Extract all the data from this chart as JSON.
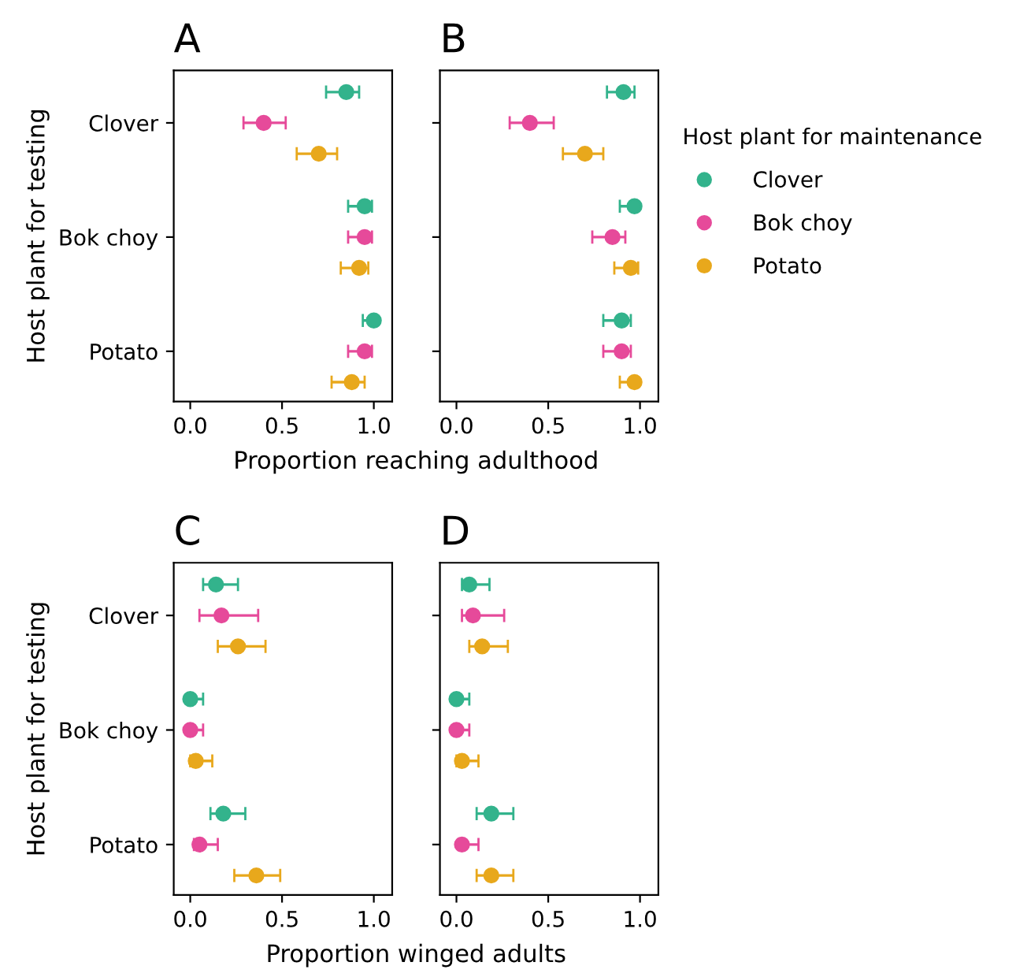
{
  "chart_data": [
    {
      "type": "scatter",
      "title": "A",
      "orientation": "horizontal",
      "xlabel": "Proportion reaching adulthood",
      "ylabel": "Host plant for testing",
      "categories": [
        "Clover",
        "Bok choy",
        "Potato"
      ],
      "xlim": [
        -0.09,
        1.1
      ],
      "xticks": [
        {
          "value": 0,
          "label": "0.0"
        },
        {
          "value": 0.5,
          "label": "0.5"
        },
        {
          "value": 1,
          "label": "1.0"
        }
      ],
      "marker": "circle",
      "grid": false,
      "series": [
        {
          "color": "#33b38c",
          "values": [
            0.85,
            0.95,
            1.0
          ],
          "errors": [
            [
              0.74,
              0.92
            ],
            [
              0.86,
              0.99
            ],
            [
              0.94,
              1.0
            ]
          ]
        },
        {
          "color": "#e64a9a",
          "values": [
            0.4,
            0.95,
            0.95
          ],
          "errors": [
            [
              0.29,
              0.52
            ],
            [
              0.86,
              0.99
            ],
            [
              0.86,
              0.99
            ]
          ]
        },
        {
          "color": "#e8a81c",
          "values": [
            0.7,
            0.92,
            0.88
          ],
          "errors": [
            [
              0.58,
              0.8
            ],
            [
              0.82,
              0.97
            ],
            [
              0.77,
              0.95
            ]
          ]
        }
      ]
    },
    {
      "type": "scatter",
      "title": "B",
      "orientation": "horizontal",
      "xlim": [
        -0.09,
        1.1
      ],
      "xticks": [
        {
          "value": 0,
          "label": "0.0"
        },
        {
          "value": 0.5,
          "label": "0.5"
        },
        {
          "value": 1,
          "label": "1.0"
        }
      ],
      "tick_labels": "x",
      "marker": "circle",
      "grid": false,
      "legend": "right",
      "legend_title": "Host plant for maintenance",
      "series": [
        {
          "name": "Clover",
          "color": "#33b38c",
          "values": [
            0.91,
            0.97,
            0.9
          ],
          "errors": [
            [
              0.82,
              0.97
            ],
            [
              0.89,
              0.98
            ],
            [
              0.8,
              0.95
            ]
          ]
        },
        {
          "name": "Bok choy",
          "color": "#e64a9a",
          "values": [
            0.4,
            0.85,
            0.9
          ],
          "errors": [
            [
              0.29,
              0.53
            ],
            [
              0.74,
              0.92
            ],
            [
              0.8,
              0.95
            ]
          ]
        },
        {
          "name": "Potato",
          "color": "#e8a81c",
          "values": [
            0.7,
            0.95,
            0.97
          ],
          "errors": [
            [
              0.58,
              0.8
            ],
            [
              0.86,
              0.99
            ],
            [
              0.89,
              0.98
            ]
          ]
        }
      ]
    },
    {
      "type": "scatter",
      "title": "C",
      "orientation": "horizontal",
      "xlabel": "Proportion winged adults",
      "ylabel": "Host plant for testing",
      "categories": [
        "Clover",
        "Bok choy",
        "Potato"
      ],
      "xlim": [
        -0.09,
        1.1
      ],
      "xticks": [
        {
          "value": 0,
          "label": "0.0"
        },
        {
          "value": 0.5,
          "label": "0.5"
        },
        {
          "value": 1,
          "label": "1.0"
        }
      ],
      "marker": "circle",
      "grid": false,
      "series": [
        {
          "color": "#33b38c",
          "values": [
            0.14,
            0.0,
            0.18
          ],
          "errors": [
            [
              0.07,
              0.26
            ],
            [
              0.0,
              0.07
            ],
            [
              0.11,
              0.3
            ]
          ]
        },
        {
          "color": "#e64a9a",
          "values": [
            0.17,
            0.0,
            0.05
          ],
          "errors": [
            [
              0.05,
              0.37
            ],
            [
              0.0,
              0.07
            ],
            [
              0.02,
              0.15
            ]
          ]
        },
        {
          "color": "#e8a81c",
          "values": [
            0.26,
            0.03,
            0.36
          ],
          "errors": [
            [
              0.15,
              0.41
            ],
            [
              0.0,
              0.12
            ],
            [
              0.24,
              0.49
            ]
          ]
        }
      ]
    },
    {
      "type": "scatter",
      "title": "D",
      "orientation": "horizontal",
      "xlim": [
        -0.09,
        1.1
      ],
      "xticks": [
        {
          "value": 0,
          "label": "0.0"
        },
        {
          "value": 0.5,
          "label": "0.5"
        },
        {
          "value": 1,
          "label": "1.0"
        }
      ],
      "tick_labels": "x",
      "marker": "circle",
      "grid": false,
      "series": [
        {
          "color": "#33b38c",
          "values": [
            0.07,
            0.0,
            0.19
          ],
          "errors": [
            [
              0.03,
              0.18
            ],
            [
              0.0,
              0.07
            ],
            [
              0.11,
              0.31
            ]
          ]
        },
        {
          "color": "#e64a9a",
          "values": [
            0.09,
            0.0,
            0.03
          ],
          "errors": [
            [
              0.03,
              0.26
            ],
            [
              0.0,
              0.07
            ],
            [
              0.01,
              0.12
            ]
          ]
        },
        {
          "color": "#e8a81c",
          "values": [
            0.14,
            0.03,
            0.19
          ],
          "errors": [
            [
              0.07,
              0.28
            ],
            [
              0.0,
              0.12
            ],
            [
              0.11,
              0.31
            ]
          ]
        }
      ]
    }
  ]
}
